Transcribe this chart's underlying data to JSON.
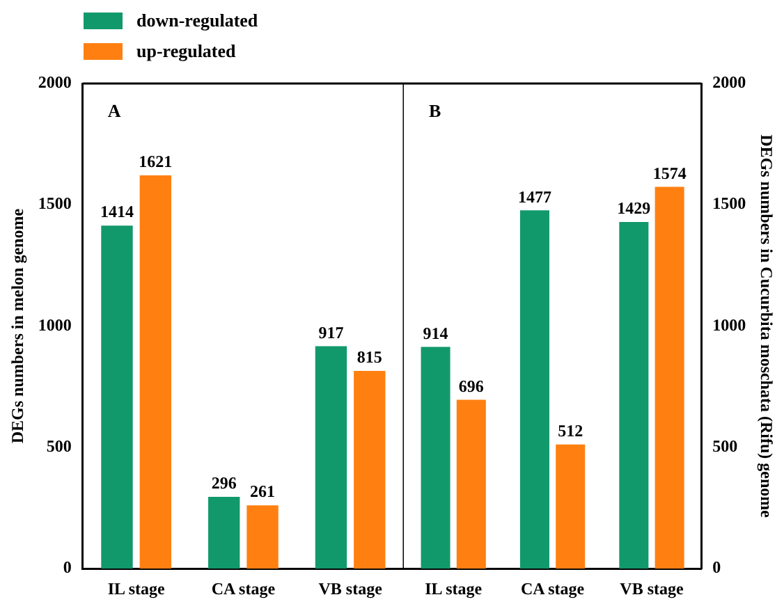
{
  "chart_data": [
    {
      "type": "bar",
      "categories": [
        "IL stage",
        "CA stage",
        "VB stage"
      ],
      "ylabel": "DEGs numbers in melon genome",
      "ylim": [
        0,
        2000
      ],
      "yticks": [
        0,
        500,
        1000,
        1500,
        2000
      ],
      "grid": false,
      "legend": "top left",
      "data_labels": true,
      "annotations": [
        "A"
      ],
      "series": [
        {
          "name": "down-regulated",
          "color": "#12996b",
          "values": [
            1414,
            296,
            917
          ]
        },
        {
          "name": "up-regulated",
          "color": "#ff8011",
          "values": [
            1621,
            261,
            815
          ]
        }
      ]
    },
    {
      "type": "bar",
      "categories": [
        "IL stage",
        "CA stage",
        "VB stage"
      ],
      "y2label": "DEGs numbers in Cucurbita moschata (Rifu) genome",
      "y2lim": [
        0,
        2000
      ],
      "y2ticks": [
        0,
        500,
        1000,
        1500,
        2000
      ],
      "grid": false,
      "data_labels": true,
      "annotations": [
        "B"
      ],
      "series": [
        {
          "color": "#12996b",
          "values": [
            914,
            1477,
            1429
          ],
          "axis": "y2"
        },
        {
          "color": "#ff8011",
          "values": [
            696,
            512,
            1574
          ],
          "axis": "y2"
        }
      ]
    }
  ]
}
